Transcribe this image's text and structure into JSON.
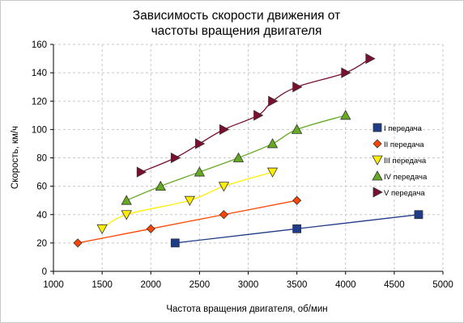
{
  "chart_data": {
    "type": "line",
    "title_lines": [
      "Зависимость скорости движения  от",
      "частоты вращения двигателя"
    ],
    "xlabel": "Частота вращения двигателя, об/мин",
    "ylabel": "Скорость, км/ч",
    "xlim": [
      1000,
      5000
    ],
    "ylim": [
      0,
      160
    ],
    "x_ticks": [
      1000,
      1500,
      2000,
      2500,
      3000,
      3500,
      4000,
      4500,
      5000
    ],
    "y_ticks": [
      0,
      20,
      40,
      60,
      80,
      100,
      120,
      140,
      160
    ],
    "grid": true,
    "legend_position": "right",
    "series": [
      {
        "name": "I передача",
        "color": "#1f3c88",
        "marker": "square",
        "points": [
          [
            2250,
            20
          ],
          [
            3500,
            30
          ],
          [
            4750,
            40
          ]
        ]
      },
      {
        "name": "II передача",
        "color": "#ff4500",
        "marker": "diamond",
        "points": [
          [
            1250,
            20
          ],
          [
            2000,
            30
          ],
          [
            2750,
            40
          ],
          [
            3500,
            50
          ]
        ]
      },
      {
        "name": "III передача",
        "color": "#ffee00",
        "marker": "triangle-down",
        "points": [
          [
            1500,
            30
          ],
          [
            1750,
            40
          ],
          [
            2400,
            50
          ],
          [
            2750,
            60
          ],
          [
            3250,
            70
          ]
        ]
      },
      {
        "name": "IV передача",
        "color": "#66aa22",
        "marker": "triangle-up",
        "points": [
          [
            1750,
            50
          ],
          [
            2100,
            60
          ],
          [
            2500,
            70
          ],
          [
            2900,
            80
          ],
          [
            3250,
            90
          ],
          [
            3500,
            100
          ],
          [
            4000,
            110
          ]
        ]
      },
      {
        "name": "V передача",
        "color": "#7a1030",
        "marker": "triangle-right",
        "points": [
          [
            1900,
            70
          ],
          [
            2250,
            80
          ],
          [
            2500,
            90
          ],
          [
            2750,
            100
          ],
          [
            3100,
            110
          ],
          [
            3250,
            120
          ],
          [
            3500,
            130
          ],
          [
            4000,
            140
          ],
          [
            4250,
            150
          ]
        ]
      }
    ]
  }
}
